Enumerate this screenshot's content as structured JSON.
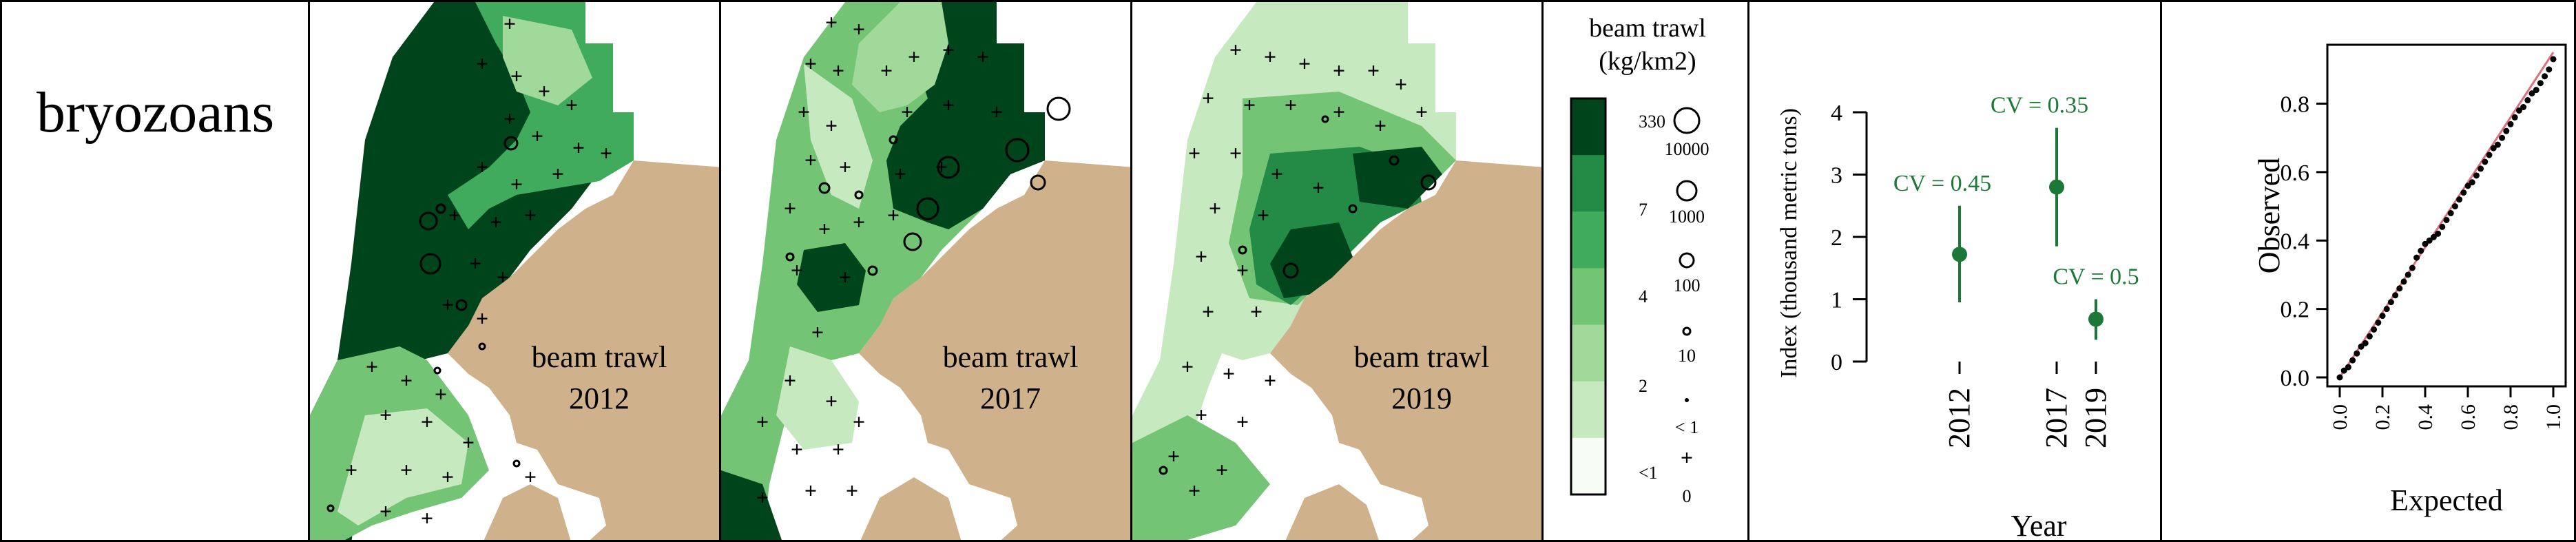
{
  "taxon": "bryozoans",
  "maps": [
    {
      "gear": "beam trawl",
      "year": "2012"
    },
    {
      "gear": "beam trawl",
      "year": "2017"
    },
    {
      "gear": "beam trawl",
      "year": "2019"
    }
  ],
  "legend": {
    "title_line1": "beam trawl",
    "title_line2": "(kg/km2)",
    "color_ticks": [
      "330",
      "7",
      "4",
      "2",
      "<1"
    ],
    "size_labels": [
      "10000",
      "1000",
      "100",
      "10",
      "< 1",
      "0"
    ],
    "colors": [
      "#00441b",
      "#238b45",
      "#41ab5d",
      "#74c476",
      "#a1d99b",
      "#c7e9c0",
      "#f7fcf5"
    ]
  },
  "colors": {
    "land": "#cfb28c",
    "index_point": "#1b7837",
    "qq_line": "#e07080"
  },
  "chart_data": [
    {
      "type": "scatter",
      "xlabel": "Year",
      "ylabel": "Index (thousand metric tons)",
      "x_ticks": [
        "2012",
        "2017",
        "2019"
      ],
      "y_ticks": [
        "0",
        "1",
        "2",
        "3",
        "4"
      ],
      "ylim": [
        0,
        4
      ],
      "points": [
        {
          "x": 2012,
          "y": 1.72,
          "lo": 0.95,
          "hi": 2.5,
          "label": "CV = 0.45"
        },
        {
          "x": 2017,
          "y": 2.8,
          "lo": 1.85,
          "hi": 3.75,
          "label": "CV = 0.35"
        },
        {
          "x": 2019,
          "y": 0.68,
          "lo": 0.35,
          "hi": 1.0,
          "label": "CV = 0.5"
        }
      ]
    },
    {
      "type": "scatter",
      "xlabel": "Expected",
      "ylabel": "Observed",
      "x_ticks": [
        "0.0",
        "0.2",
        "0.4",
        "0.6",
        "0.8",
        "1.0"
      ],
      "y_ticks": [
        "0.0",
        "0.2",
        "0.4",
        "0.6",
        "0.8"
      ],
      "xlim": [
        0,
        1
      ],
      "ylim": [
        0,
        0.95
      ],
      "reference_line": "y = x",
      "points": [
        [
          0.0,
          0.0
        ],
        [
          0.02,
          0.02
        ],
        [
          0.04,
          0.03
        ],
        [
          0.06,
          0.05
        ],
        [
          0.08,
          0.07
        ],
        [
          0.1,
          0.09
        ],
        [
          0.12,
          0.1
        ],
        [
          0.14,
          0.12
        ],
        [
          0.16,
          0.14
        ],
        [
          0.18,
          0.16
        ],
        [
          0.2,
          0.18
        ],
        [
          0.22,
          0.2
        ],
        [
          0.24,
          0.22
        ],
        [
          0.26,
          0.24
        ],
        [
          0.28,
          0.26
        ],
        [
          0.3,
          0.28
        ],
        [
          0.32,
          0.3
        ],
        [
          0.34,
          0.32
        ],
        [
          0.36,
          0.35
        ],
        [
          0.38,
          0.37
        ],
        [
          0.4,
          0.39
        ],
        [
          0.42,
          0.4
        ],
        [
          0.44,
          0.41
        ],
        [
          0.46,
          0.42
        ],
        [
          0.48,
          0.44
        ],
        [
          0.5,
          0.46
        ],
        [
          0.52,
          0.48
        ],
        [
          0.54,
          0.5
        ],
        [
          0.56,
          0.52
        ],
        [
          0.58,
          0.54
        ],
        [
          0.6,
          0.56
        ],
        [
          0.62,
          0.57
        ],
        [
          0.64,
          0.59
        ],
        [
          0.66,
          0.61
        ],
        [
          0.68,
          0.63
        ],
        [
          0.7,
          0.65
        ],
        [
          0.72,
          0.67
        ],
        [
          0.74,
          0.68
        ],
        [
          0.76,
          0.7
        ],
        [
          0.78,
          0.72
        ],
        [
          0.8,
          0.74
        ],
        [
          0.82,
          0.76
        ],
        [
          0.84,
          0.78
        ],
        [
          0.86,
          0.79
        ],
        [
          0.88,
          0.81
        ],
        [
          0.9,
          0.83
        ],
        [
          0.92,
          0.84
        ],
        [
          0.94,
          0.86
        ],
        [
          0.96,
          0.88
        ],
        [
          0.98,
          0.9
        ],
        [
          1.0,
          0.93
        ]
      ]
    }
  ]
}
